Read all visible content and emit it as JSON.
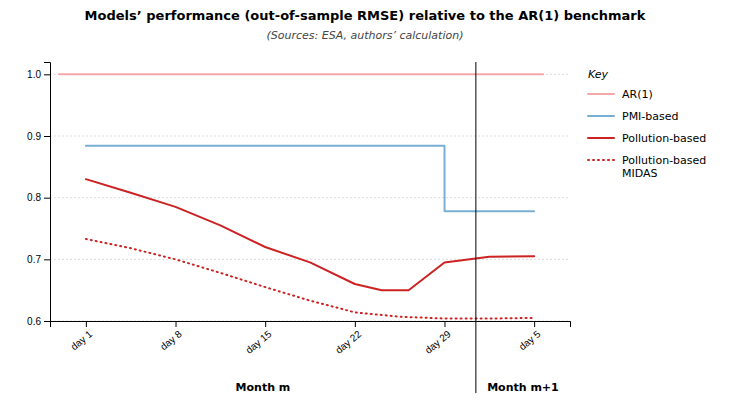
{
  "chart_data": {
    "type": "line",
    "title": "Models’ performance (out-of-sample RMSE) relative to the AR(1) benchmark",
    "subtitle": "(Sources: ESA, authors’ calculation)",
    "xlim": [
      -0.4,
      5.4
    ],
    "xticks": [
      {
        "value": 0,
        "label": "day 1"
      },
      {
        "value": 1,
        "label": "day 8"
      },
      {
        "value": 2,
        "label": "day 15"
      },
      {
        "value": 3,
        "label": "day 22"
      },
      {
        "value": 4,
        "label": "day 29"
      },
      {
        "value": 5,
        "label": "day 5"
      }
    ],
    "ylim": [
      0.6,
      1.02
    ],
    "yticks": [
      0.6,
      0.7,
      0.8,
      0.9,
      {
        "value": 1.0,
        "label": "1.0"
      }
    ],
    "grid": "y",
    "legend": "right",
    "legend_title": "Key",
    "series": [
      {
        "name": "AR(1)",
        "color": "#f4a9a8",
        "line_style": "solid",
        "x": [
          -0.3,
          5.1
        ],
        "values": [
          1.0,
          1.0
        ]
      },
      {
        "name": "PMI-based",
        "color": "#7aafd4",
        "line_style": "solid",
        "x": [
          0,
          1,
          2,
          3,
          4,
          4.001,
          5
        ],
        "values": [
          0.884,
          0.884,
          0.884,
          0.884,
          0.884,
          0.778,
          0.778
        ]
      },
      {
        "name": "Pollution-based",
        "color": "#cc2222",
        "line_style": "solid",
        "x": [
          0,
          0.5,
          1,
          1.5,
          2,
          2.5,
          3,
          3.3,
          3.6,
          4,
          4.5,
          5
        ],
        "values": [
          0.83,
          0.808,
          0.785,
          0.755,
          0.72,
          0.695,
          0.66,
          0.65,
          0.65,
          0.695,
          0.704,
          0.705
        ]
      },
      {
        "name": "Pollution-based\nMIDAS",
        "color": "#cc2222",
        "line_style": "dotted",
        "x": [
          0,
          0.5,
          1,
          1.5,
          2,
          2.5,
          3,
          3.5,
          4,
          4.5,
          5
        ],
        "values": [
          0.733,
          0.718,
          0.7,
          0.678,
          0.655,
          0.633,
          0.614,
          0.607,
          0.604,
          0.604,
          0.605
        ]
      }
    ],
    "vlines": [
      4.35
    ],
    "annotations": [
      {
        "text": "Month m"
      },
      {
        "text": "Month m+1"
      }
    ]
  }
}
